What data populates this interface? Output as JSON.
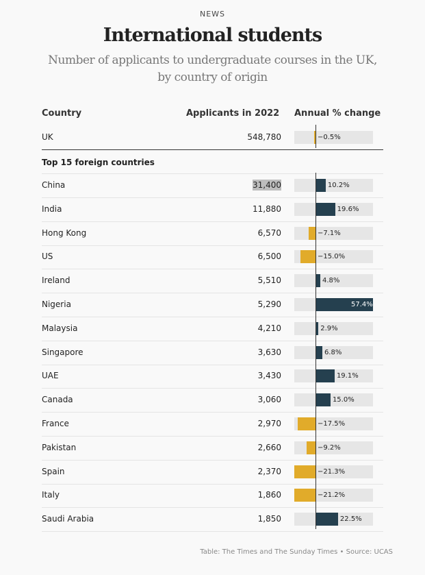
{
  "header": {
    "kicker": "NEWS",
    "title": "International students",
    "subtitle": "Number of applicants to undergraduate courses in the UK, by country of origin"
  },
  "chart_data": {
    "type": "table",
    "columns": [
      "Country",
      "Applicants in 2022",
      "Annual % change"
    ],
    "colors": {
      "positive": "#25404f",
      "negative": "#e1ab2a",
      "background": "#e6e6e6"
    },
    "uk": {
      "country": "UK",
      "applicants": "548,780",
      "change": -0.5,
      "label": "−0.5%"
    },
    "group_label": "Top 15 foreign countries",
    "rows": [
      {
        "country": "China",
        "applicants": "31,400",
        "change": 10.2,
        "label": "10.2%",
        "highlight": true
      },
      {
        "country": "India",
        "applicants": "11,880",
        "change": 19.6,
        "label": "19.6%"
      },
      {
        "country": "Hong Kong",
        "applicants": "6,570",
        "change": -7.1,
        "label": "−7.1%"
      },
      {
        "country": "US",
        "applicants": "6,500",
        "change": -15.0,
        "label": "−15.0%"
      },
      {
        "country": "Ireland",
        "applicants": "5,510",
        "change": 4.8,
        "label": "4.8%"
      },
      {
        "country": "Nigeria",
        "applicants": "5,290",
        "change": 57.4,
        "label": "57.4%"
      },
      {
        "country": "Malaysia",
        "applicants": "4,210",
        "change": 2.9,
        "label": "2.9%"
      },
      {
        "country": "Singapore",
        "applicants": "3,630",
        "change": 6.8,
        "label": "6.8%"
      },
      {
        "country": "UAE",
        "applicants": "3,430",
        "change": 19.1,
        "label": "19.1%"
      },
      {
        "country": "Canada",
        "applicants": "3,060",
        "change": 15.0,
        "label": "15.0%"
      },
      {
        "country": "France",
        "applicants": "2,970",
        "change": -17.5,
        "label": "−17.5%"
      },
      {
        "country": "Pakistan",
        "applicants": "2,660",
        "change": -9.2,
        "label": "−9.2%"
      },
      {
        "country": "Spain",
        "applicants": "2,370",
        "change": -21.3,
        "label": "−21.3%"
      },
      {
        "country": "Italy",
        "applicants": "1,860",
        "change": -21.2,
        "label": "−21.2%"
      },
      {
        "country": "Saudi Arabia",
        "applicants": "1,850",
        "change": 22.5,
        "label": "22.5%"
      }
    ]
  },
  "footer": "Table: The Times and The Sunday Times • Source: UCAS"
}
